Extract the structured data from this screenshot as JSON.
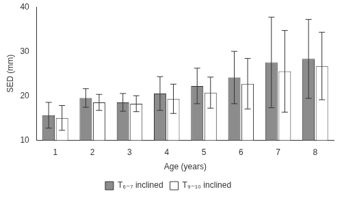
{
  "chart_data": {
    "type": "bar",
    "x_label": "Age (years)",
    "y_label": "SED (mm)",
    "categories": [
      1,
      2,
      3,
      4,
      5,
      6,
      7,
      8
    ],
    "series": [
      {
        "name": "T₆₋₇ inclined",
        "color": "#8c8c8c",
        "values": [
          15.6,
          19.5,
          18.5,
          20.5,
          22.2,
          24.1,
          27.5,
          28.3
        ],
        "errors": [
          2.9,
          2.1,
          2.0,
          3.8,
          4.0,
          5.9,
          10.2,
          8.9
        ]
      },
      {
        "name": "T₉₋₁₀ inclined",
        "color": "#ffffff",
        "values": [
          15.0,
          18.5,
          18.2,
          19.3,
          20.7,
          22.7,
          25.5,
          26.7
        ],
        "errors": [
          2.8,
          1.8,
          1.8,
          3.3,
          3.5,
          5.7,
          9.2,
          7.6
        ]
      }
    ],
    "ylim": [
      10,
      40
    ],
    "yticks": [
      10,
      20,
      30,
      40
    ],
    "grid": false,
    "legend": "bottom"
  }
}
